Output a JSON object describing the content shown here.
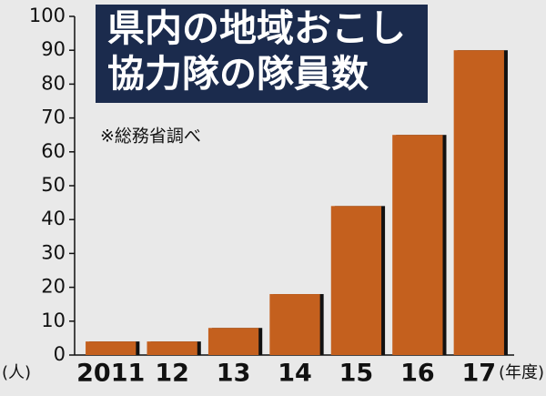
{
  "chart_data": {
    "type": "bar",
    "title_lines": [
      "県内の地域おこし",
      "協力隊の隊員数"
    ],
    "subtitle": "※総務省調べ",
    "y_unit": "(人)",
    "x_unit": "(年度)",
    "categories": [
      "2011",
      "12",
      "13",
      "14",
      "15",
      "16",
      "17"
    ],
    "values": [
      4,
      4,
      8,
      18,
      44,
      65,
      90
    ],
    "color": "#c4601e",
    "ylim": [
      0,
      100
    ],
    "yticks": [
      0,
      10,
      20,
      30,
      40,
      50,
      60,
      70,
      80,
      90,
      100
    ],
    "grid": false
  }
}
